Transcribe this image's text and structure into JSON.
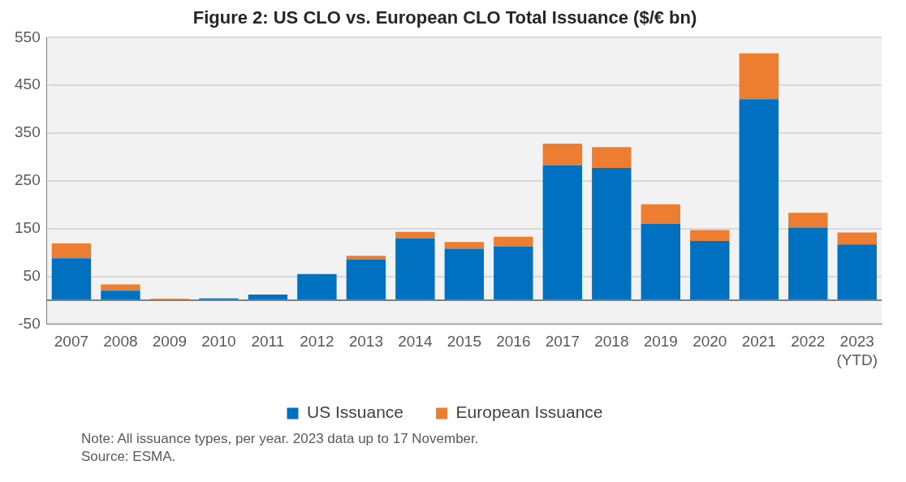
{
  "chart_data": {
    "type": "bar",
    "title": "Figure 2: US CLO vs. European CLO Total Issuance ($/€ bn)",
    "categories": [
      "2007",
      "2008",
      "2009",
      "2010",
      "2011",
      "2012",
      "2013",
      "2014",
      "2015",
      "2016",
      "2017",
      "2018",
      "2019",
      "2020",
      "2021",
      "2022",
      "2023\n(YTD)"
    ],
    "stacked": true,
    "series": [
      {
        "name": "US Issuance",
        "color": "#0070c0",
        "values": [
          88,
          20,
          null,
          4,
          12,
          55,
          85,
          129,
          108,
          112,
          282,
          277,
          160,
          124,
          421,
          152,
          117
        ]
      },
      {
        "name": "European Issuance",
        "color": "#ed7d31",
        "values": [
          31,
          13,
          3,
          null,
          0,
          0,
          8,
          14,
          14,
          21,
          46,
          44,
          41,
          23,
          96,
          31,
          25
        ]
      }
    ],
    "ylim": [
      -50,
      550
    ],
    "yticks": [
      -50,
      50,
      150,
      250,
      350,
      450,
      550
    ],
    "grid": "y",
    "legend": "bottom",
    "annotations": [
      "Note: All issuance types, per year. 2023 data up to 17 November.",
      "Source: ESMA."
    ]
  }
}
